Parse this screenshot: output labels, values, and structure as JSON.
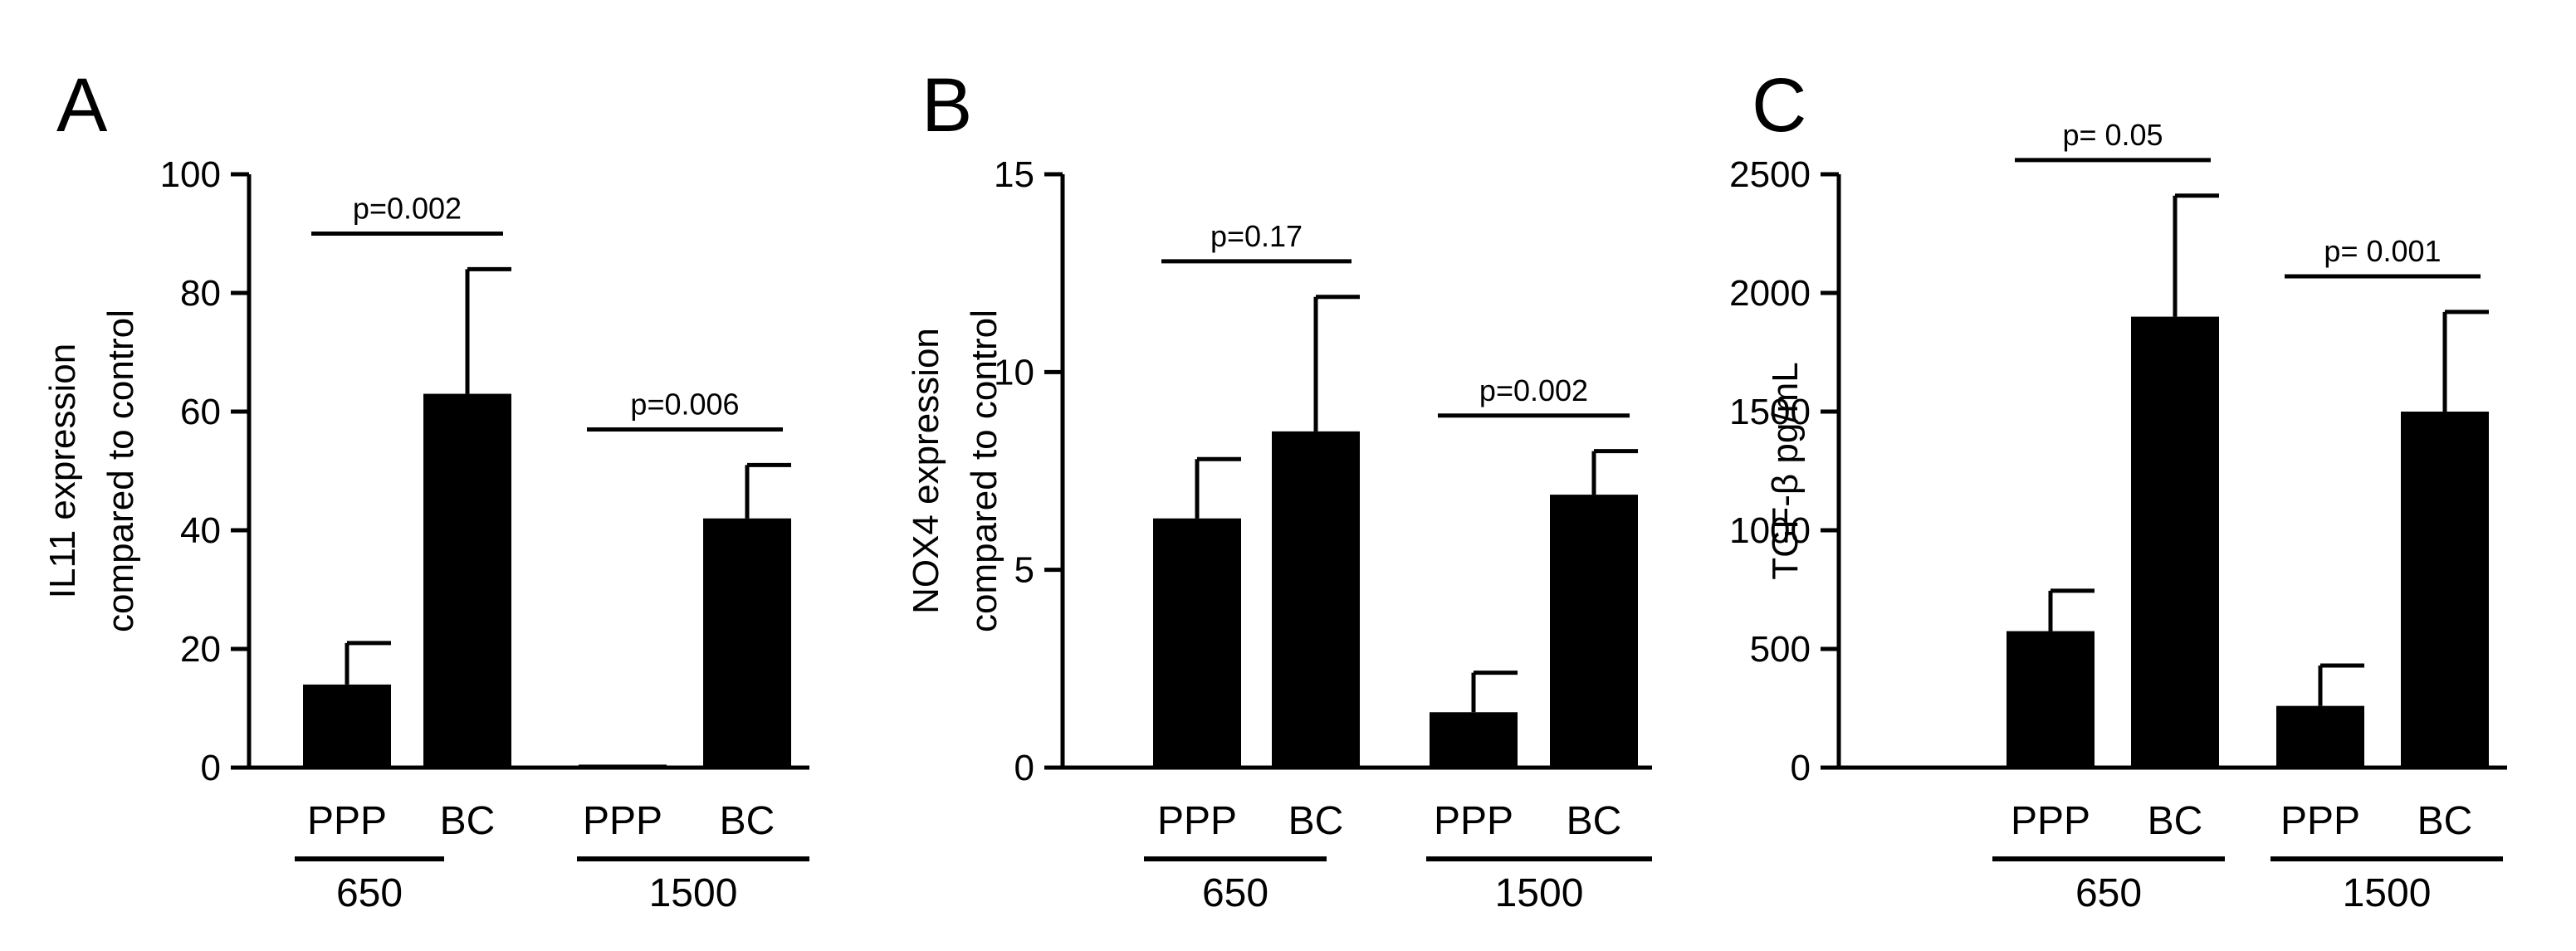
{
  "chart_data": [
    {
      "panel": "A",
      "type": "bar",
      "ylabel_lines": [
        "IL11 expression",
        "compared to control"
      ],
      "ylim": [
        0,
        100
      ],
      "yticks": [
        0,
        20,
        40,
        60,
        80,
        100
      ],
      "categories": [
        "PPP",
        "BC",
        "PPP",
        "BC"
      ],
      "groups": [
        {
          "label": "650",
          "members": [
            0,
            1
          ]
        },
        {
          "label": "1500",
          "members": [
            2,
            3
          ]
        }
      ],
      "values": [
        14,
        63,
        0.5,
        42
      ],
      "errors": [
        7,
        21,
        0,
        9
      ],
      "comparisons": [
        {
          "text": "p=0.002",
          "from": 0,
          "to": 1,
          "y": 90
        },
        {
          "text": "p=0.006",
          "from": 2,
          "to": 3,
          "y": 57
        }
      ]
    },
    {
      "panel": "B",
      "type": "bar",
      "ylabel_lines": [
        "NOX4 expression",
        "compared to control"
      ],
      "ylim": [
        0,
        15
      ],
      "yticks": [
        0,
        5,
        10,
        15
      ],
      "categories": [
        "PPP",
        "BC",
        "PPP",
        "BC"
      ],
      "groups": [
        {
          "label": "650",
          "members": [
            0,
            1
          ]
        },
        {
          "label": "1500",
          "members": [
            2,
            3
          ]
        }
      ],
      "values": [
        6.3,
        8.5,
        1.4,
        6.9
      ],
      "errors": [
        1.5,
        3.4,
        1.0,
        1.1
      ],
      "comparisons": [
        {
          "text": "p=0.17",
          "from": 0,
          "to": 1,
          "y": 12.8
        },
        {
          "text": "p=0.002",
          "from": 2,
          "to": 3,
          "y": 8.9
        }
      ]
    },
    {
      "panel": "C",
      "type": "bar",
      "ylabel_lines": [
        "TGF-β pg/mL"
      ],
      "ylim": [
        0,
        2500
      ],
      "yticks": [
        0,
        500,
        1000,
        1500,
        2000,
        2500
      ],
      "categories": [
        "PPP",
        "BC",
        "PPP",
        "BC"
      ],
      "groups": [
        {
          "label": "650",
          "members": [
            0,
            1
          ]
        },
        {
          "label": "1500",
          "members": [
            2,
            3
          ]
        }
      ],
      "values": [
        575,
        1900,
        260,
        1500
      ],
      "errors": [
        170,
        510,
        170,
        420
      ],
      "comparisons": [
        {
          "text": "p= 0.05",
          "from": 0,
          "to": 1,
          "y": 2560
        },
        {
          "text": "p= 0.001",
          "from": 2,
          "to": 3,
          "y": 2070
        }
      ]
    }
  ]
}
